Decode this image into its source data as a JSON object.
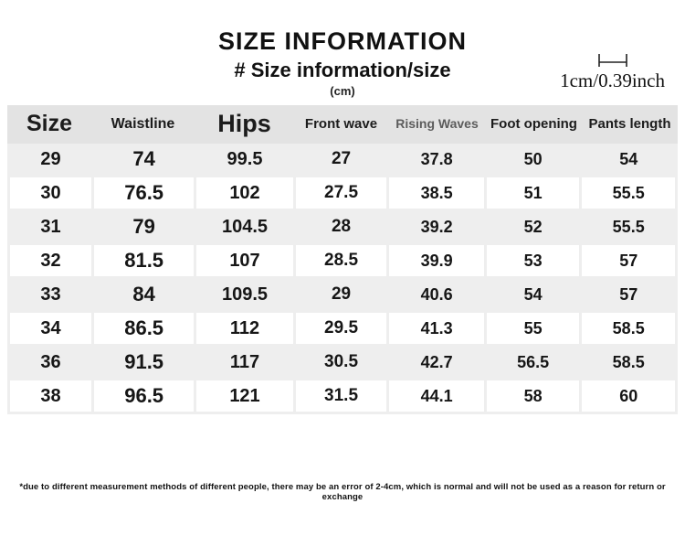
{
  "header": {
    "title": "SIZE INFORMATION",
    "subtitle": "# Size information/size",
    "unit": "(cm)"
  },
  "ruler": {
    "label": "1cm/0.39inch",
    "icon": "ruler-scale-icon"
  },
  "chart_data": {
    "type": "table",
    "title": "SIZE INFORMATION",
    "subtitle": "# Size information/size",
    "unit": "cm",
    "columns": [
      "Size",
      "Waistline",
      "Hips",
      "Front wave",
      "Rising Waves",
      "Foot opening",
      "Pants length"
    ],
    "rows": [
      [
        "29",
        "74",
        "99.5",
        "27",
        "37.8",
        "50",
        "54"
      ],
      [
        "30",
        "76.5",
        "102",
        "27.5",
        "38.5",
        "51",
        "55.5"
      ],
      [
        "31",
        "79",
        "104.5",
        "28",
        "39.2",
        "52",
        "55.5"
      ],
      [
        "32",
        "81.5",
        "107",
        "28.5",
        "39.9",
        "53",
        "57"
      ],
      [
        "33",
        "84",
        "109.5",
        "29",
        "40.6",
        "54",
        "57"
      ],
      [
        "34",
        "86.5",
        "112",
        "29.5",
        "41.3",
        "55",
        "58.5"
      ],
      [
        "36",
        "91.5",
        "117",
        "30.5",
        "42.7",
        "56.5",
        "58.5"
      ],
      [
        "38",
        "96.5",
        "121",
        "31.5",
        "44.1",
        "58",
        "60"
      ]
    ],
    "layout": {
      "striped": true,
      "stripe_colors": {
        "odd_row": "#eeeeee",
        "even_row": "#ffffff",
        "header": "#e3e3e3"
      }
    }
  },
  "footnote": "*due to different measurement methods of different people, there may be an error of 2-4cm, which is normal and will not be used as a reason for return or exchange",
  "colors": {
    "background": "#ffffff",
    "table_header_bg": "#e3e3e3",
    "row_gray_bg": "#eeeeee",
    "row_white_bg": "#ffffff",
    "text": "#1a1a1a",
    "rising_waves_header_text": "#5c5c5c"
  }
}
